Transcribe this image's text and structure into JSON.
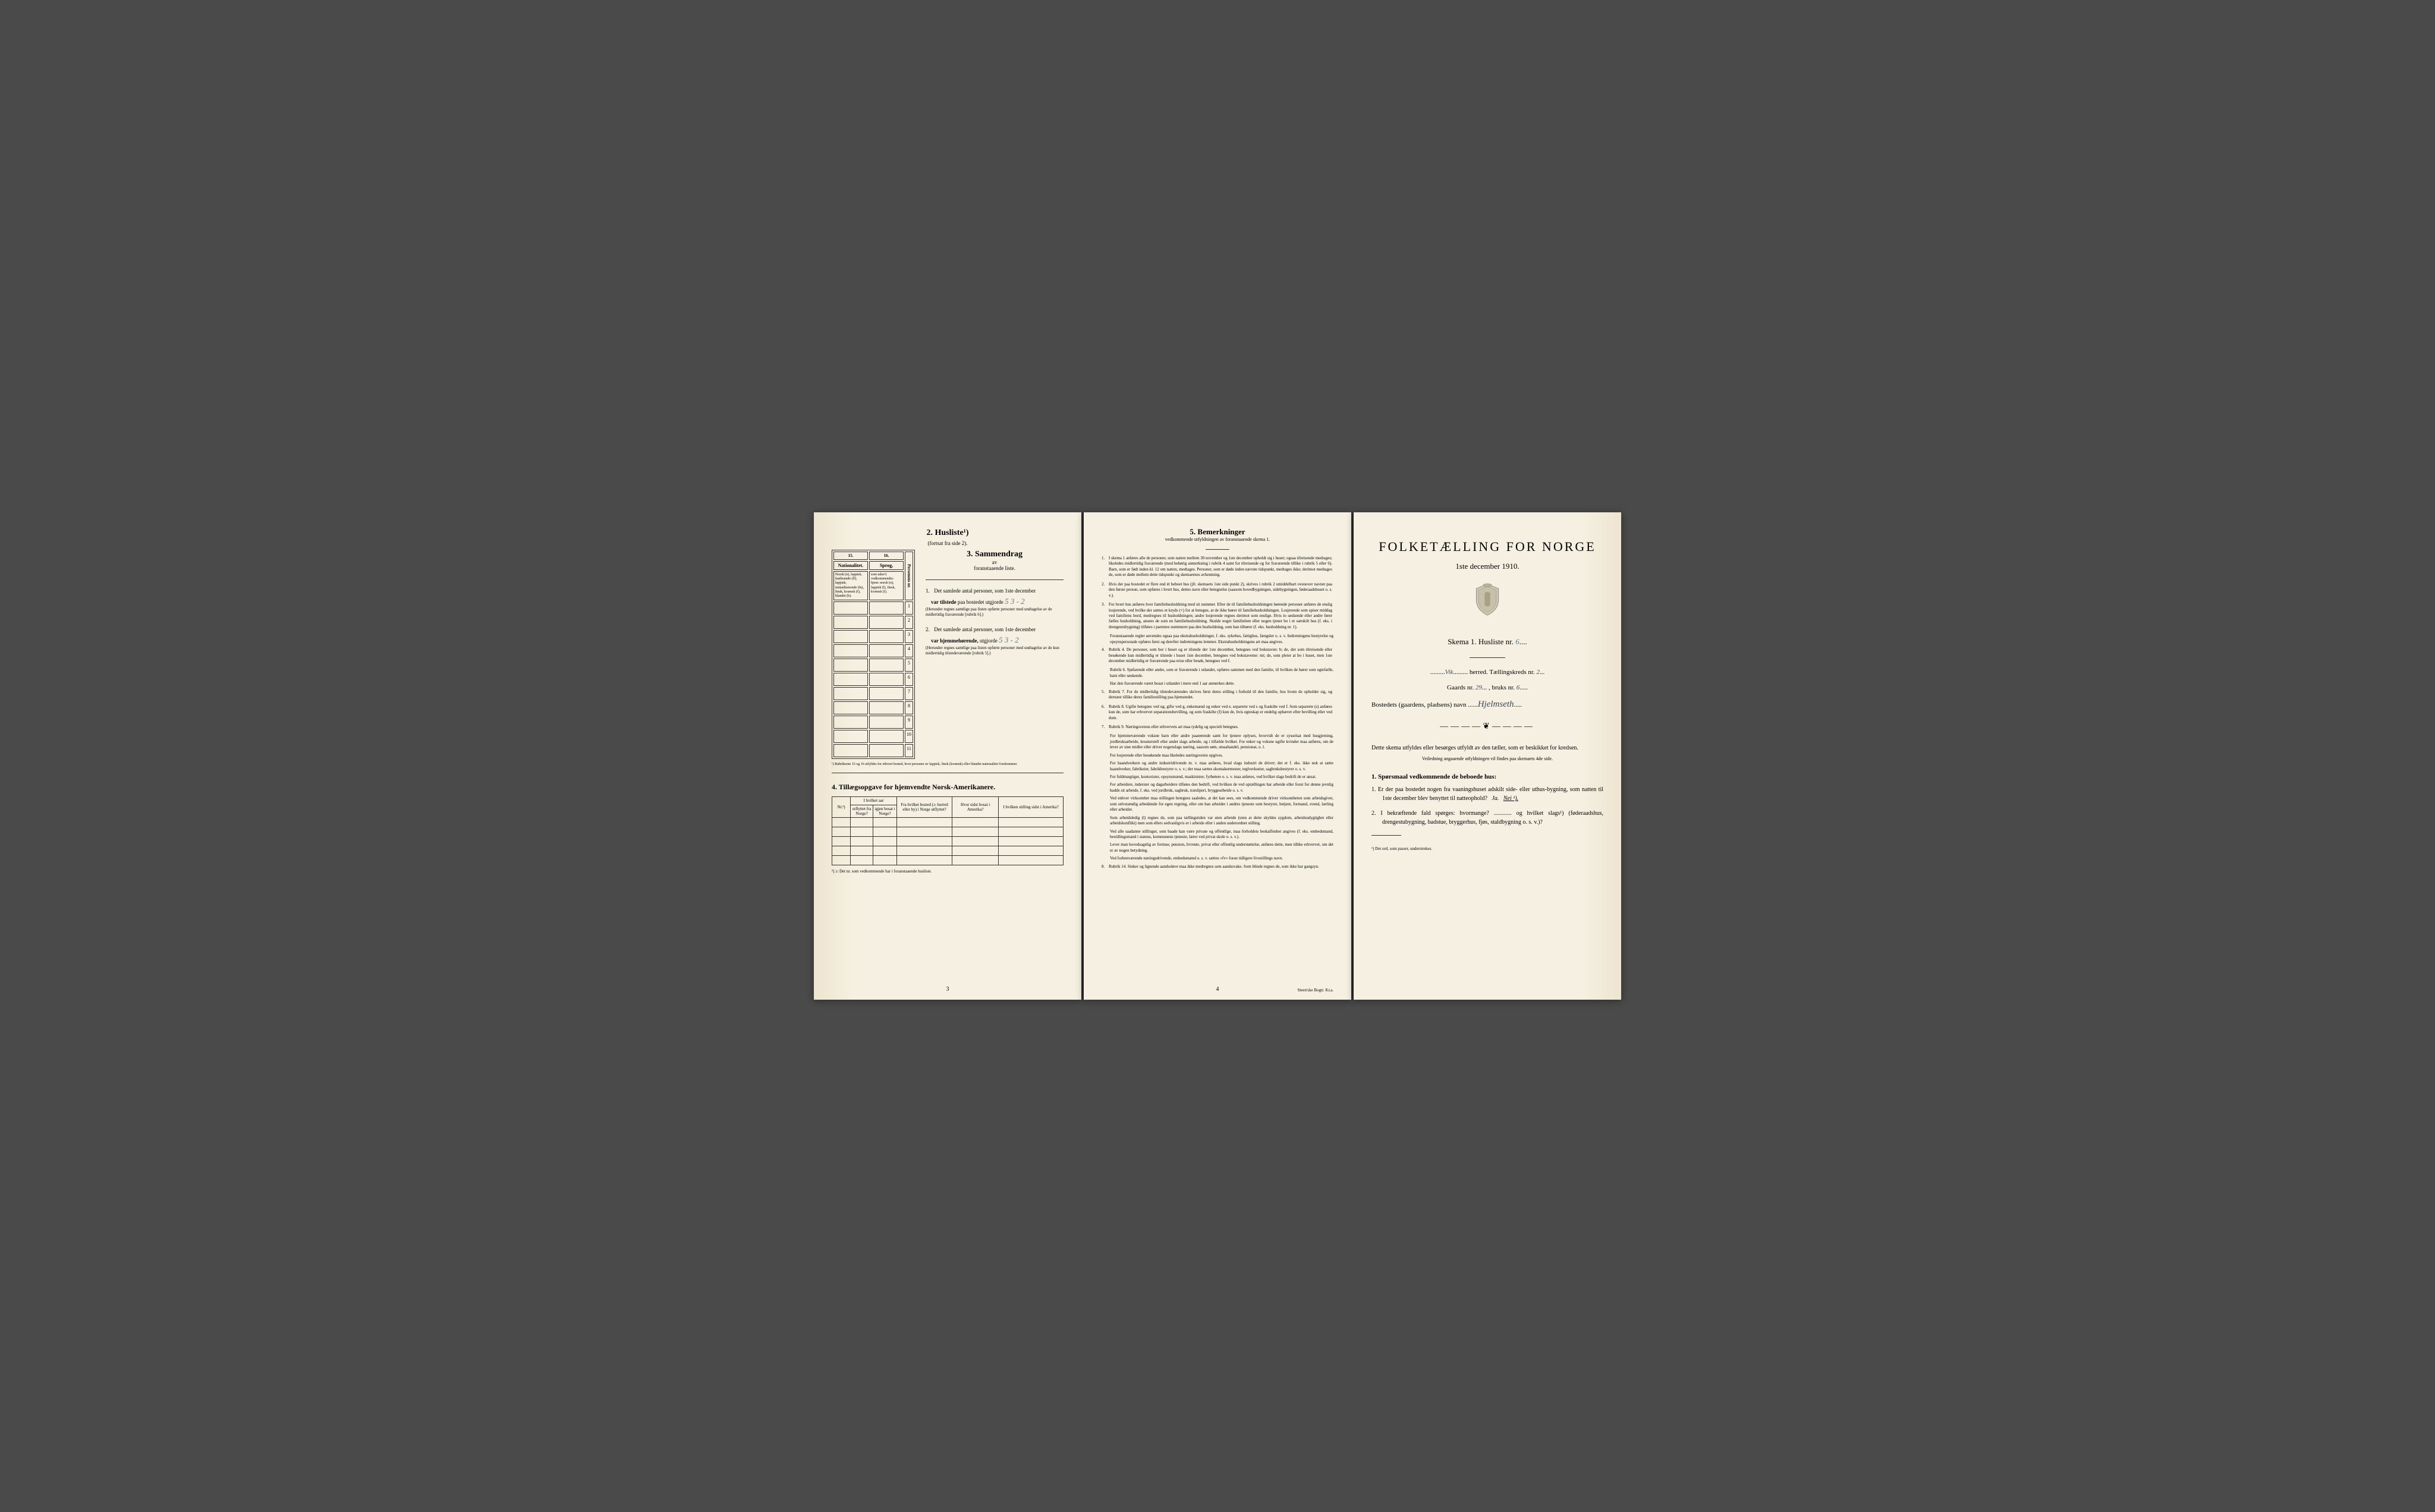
{
  "colors": {
    "paper": "#f5f0e1",
    "paper_edge": "#ede5d0",
    "ink": "#1a1a1a",
    "handwriting": "#5a7a8a",
    "background": "#4a4a4a"
  },
  "typography": {
    "body_family": "Georgia, Times New Roman, serif",
    "title_size_pt": 22,
    "heading_size_pt": 14,
    "body_size_pt": 9,
    "small_size_pt": 7,
    "tiny_size_pt": 6
  },
  "left_page": {
    "husliste": {
      "title": "2.  Husliste¹)",
      "subtitle": "(fortsat fra side 2).",
      "columns": {
        "c15": "15.",
        "c16": "16.",
        "c15_head": "Nationalitet.",
        "c16_head": "Sprog,",
        "c15_sub": "Norsk (n), lappisk, fastboende (lf), lappisk, nomadiserende (ln), finsk, kvænsk (f), blandet (b).",
        "c16_sub": "som tales¹) vedkommendes hjem: norsk (n), lappisk (l), finsk, kvænsk (f).",
        "side": "Personens nr."
      },
      "rows": [
        1,
        2,
        3,
        4,
        5,
        6,
        7,
        8,
        9,
        10,
        11
      ],
      "footnote": "¹) Rubrikerne 15 og 16 utfyldes for ethvert bosted, hvor personer av lappisk, finsk (kvænsk) eller blandet nationalitet forekommer."
    },
    "sammendrag": {
      "title": "3.  Sammendrag",
      "sub": "av",
      "sub2": "foranstaaende liste.",
      "item1_num": "1.",
      "item1_text": "Det samlede antal personer, som 1ste december",
      "item1_bold": "var tilstede",
      "item1_rest": "paa bostedet utgjorde",
      "item1_hand": "5  3 - 2",
      "item1_note": "(Herunder regnes samtlige paa listen opførte personer med undtagelse av de midlertidig fraværende [rubrik 6].)",
      "item2_num": "2.",
      "item2_text": "Det samlede antal personer, som 1ste december",
      "item2_bold": "var hjemmehørende,",
      "item2_rest": "utgjorde",
      "item2_hand": "5   3 - 2",
      "item2_note": "(Herunder regnes samtlige paa listen opførte personer med undtagelse av de kun midlertidig tilstedeværende [rubrik 5].)"
    },
    "section4": {
      "title": "4.  Tillægsopgave for hjemvendte Norsk-Amerikanere.",
      "headers": {
        "nr": "Nr.²)",
        "hvilket_aar": "I hvilket aar",
        "utflyttet": "utflyttet fra Norge?",
        "igjen": "igjen bosat i Norge?",
        "fra_bosted": "Fra hvilket bosted (ɔ: herred eller by) i Norge utflyttet?",
        "hvor_sidst": "Hvor sidst bosat i Amerika?",
        "stilling": "I hvilken stilling sidst i Amerika?"
      },
      "rows": 5,
      "footnote": "²) ɔ: Det nr. som vedkommende har i foranstaaende husliste."
    },
    "page_num": "3"
  },
  "middle_page": {
    "title": "5.  Bemerkninger",
    "subtitle": "vedkommende utfyldningen av foranstaaende skema 1.",
    "items": [
      {
        "n": "1.",
        "t": "I skema 1 anføres alle de personer, som natten mellem 30 november og 1ste december opholdt sig i huset; ogsaa tilreisende medtages; likeledes midlertidig fraværende (med behørig anmerkning i rubrik 4 samt for tilreisende og for fraværende tillike i rubrik 5 eller 6). Barn, som er født inden kl. 12 om natten, medtages. Personer, som er døde inden nævnte tidspunkt, medtages ikke; derimot medtages de, som er døde mellem dette tidspunkt og skemaernes avhentning."
      },
      {
        "n": "2.",
        "t": "Hvis der paa bostedet er flere end ét beboet hus (jfr. skemaets 1ste side punkt 2), skrives i rubrik 2 umiddelbart ovenover navnet paa den første person, som opføres i hvert hus, dettes navn eller betegnelse (saasom hovedbygningen, sidebygningen, føderaadshuset o. s. v.)."
      },
      {
        "n": "3.",
        "t": "For hvert hus anføres hver familiehusholdning med sit nummer. Efter de til familiehusholdningen hørende personer anføres de enslig losjerende, ved hvilke der sættes et kryds (×) for at betegne, at de ikke hører til familiehusholdningen. Losjerende som spiser middag ved familiens bord, medregnes til husholdningen; andre losjerende regnes derimot som enslige. Hvis to søskende eller andre fører fælles husholdning, ansees de som en familiehusholdning. Skulde noget familielem eller nogen tjener bo i et særskilt hus (f. eks. i drengestubygning) tilføies i parentes nummeret paa den husholdning, som han tilhører (f. eks. husholdning nr. 1)."
      },
      {
        "n": "",
        "t": "Foranstaaende regler anvendes ogsaa paa ekstrahusholdninger, f. eks. sykehus, fattighus, fængsler o. s. v. Indretningens bestyrelse og opsynspersonale opføres først og derefter indretningens lemmer. Ekstrahusholdningens art maa angives."
      },
      {
        "n": "4.",
        "t": "Rubrik 4. De personer, som bor i huset og er tilstede der 1ste december, betegnes ved bokstaven: b; de, der som tilreisende eller besøkende kun midlertidig er tilstede i huset 1ste december, betegnes ved bokstaverne: mt; de, som pleier at bo i huset, men 1ste december midlertidig er fraværende paa reise eller besøk, betegnes ved f."
      },
      {
        "n": "",
        "t": "Rubrik 6. Sjøfarende eller andre, som er fraværende i utlandet, opføres sammen med den familie, til hvilken de hører som egtefælle, barn eller søskende."
      },
      {
        "n": "",
        "t": "Har den fraværende været bosat i utlandet i mere end 1 aar anmerkes dette."
      },
      {
        "n": "5.",
        "t": "Rubrik 7. For de midlertidig tilstedeværendes skrives først deres stilling i forhold til den familie, hos hvem de opholder sig, og dernæst tillike deres familiestilling paa hjemstedet."
      },
      {
        "n": "6.",
        "t": "Rubrik 8. Ugifte betegnes ved ug, gifte ved g, enkemænd og enker ved e, separerte ved s og fraskilte ved f. Som separerte (s) anføres kun de, som har erhvervet separationsbevilling, og som fraskilte (f) kun de, hvis egteskap er endelig ophævet efter bevilling eller ved dom."
      },
      {
        "n": "7.",
        "t": "Rubrik 9. Næringsveiens eller erhvervets art maa tydelig og specielt betegnes."
      },
      {
        "n": "",
        "t": "For hjemmeværende voksne barn eller andre paarørende samt for tjenere oplyses, hvorvidt de er sysselsat med husgjerning, jordbruksarbeide, kreaturstell eller andet slags arbeide, og i tilfælde hvilket. For enker og voksne ugifte kvinder maa anføres, om de lever av sine midler eller driver nogenslags næring, saasom søm, smaahandel, pensionat, o. l."
      },
      {
        "n": "",
        "t": "For losjerende eller besøkende maa likeledes næringsveien opgives."
      },
      {
        "n": "",
        "t": "For haandverkere og andre industridrivende m. v. maa anføres, hvad slags industri de driver; det er f. eks. ikke nok at sætte haandverker, fabrikeier, fabrikbestyrer o. s. v.; der maa sættes skomakermester, teglverkseier, sagbruksbestyrer o. s. v."
      },
      {
        "n": "",
        "t": "For fuldmægtiger, kontorister, opsynsmænd, maskinister, fyrbøtere o. s. v. maa anføres, ved hvilket slags bedrift de er ansat."
      },
      {
        "n": "",
        "t": "For arbeidere, inderster og dagarbeidere tilføies den bedrift, ved hvilken de ved optællingen har arbeide eller forut for denne jevnlig hadde sit arbeide, f. eks. ved jordbruk, sagbruk, træsliperi, bryggearbeide o. s. v."
      },
      {
        "n": "",
        "t": "Ved enhver virksomhet maa stillingen betegnes saaledes, at det kan sees, om vedkommende driver virksomheten som arbeidsgiver, som selvstændig arbeidende for egen regning, eller om han arbeider i andres tjeneste som bestyrer, betjent, formand, svend, lærling eller arbeider."
      },
      {
        "n": "",
        "t": "Som arbeidsledig (l) regnes de, som paa tællingstiden var uten arbeide (uten at dette skyldes sygdom, arbeidsudygtighet eller arbeidskonflikt) men som ellers sedvanligvis er i arbeide eller i anden underordnet stilling."
      },
      {
        "n": "",
        "t": "Ved alle saadanne stillinger, som baade kan være private og offentlige, maa forholdets beskaffenhet angives (f. eks. embedsmand, bestillingsmand i statens, kommunens tjeneste, lærer ved privat skole o. s. v.)."
      },
      {
        "n": "",
        "t": "Lever man hovedsagelig av formue, pension, livrente, privat eller offentlig understøttelse, anføres dette, men tillike erhvervet, om det er av nogen betydning."
      },
      {
        "n": "",
        "t": "Ved forhenværende næringsdrivende, embedsmænd o. s. v. sættes «fv» foran tidligere livsstillings navn."
      },
      {
        "n": "8.",
        "t": "Rubrik 14. Sinker og lignende aandssløve maa ikke medregnes som aandssvake. Som blinde regnes de, som ikke har gangsyn."
      }
    ],
    "page_num": "4",
    "printer": "Steen'ske Bogtr.  Kr.a."
  },
  "right_page": {
    "title": "FOLKETÆLLING FOR NORGE",
    "date": "1ste december 1910.",
    "skema": "Skema 1.  Husliste nr.",
    "skema_hand": "6",
    "herred_hand": "Vik",
    "herred_label": "herred.   Tællingskreds nr.",
    "kreds_hand": "2",
    "gaards_label": "Gaards nr.",
    "gaards_hand": "29",
    "bruks_label": ", bruks nr.",
    "bruks_hand": "6",
    "bosted_label": "Bostedets (gaardens, pladsens) navn",
    "bosted_hand": "Hjelmseth",
    "ornament": "————❦————",
    "instr1": "Dette skema utfyldes eller besørges utfyldt av den tæller, som er beskikket for kredsen.",
    "instr_sub": "Veiledning angaaende utfyldningen vil findes paa skemaets 4de side.",
    "sporsmaal_head": "1. Spørsmaal vedkommende de beboede hus:",
    "q1": "1.  Er der paa bostedet nogen fra vaaningshuset adskilt side- eller uthus-bygning, som natten til 1ste december blev benyttet til natteophold?",
    "q1_ja": "Ja.",
    "q1_nei": "Nei ¹).",
    "q2": "2.  I bekræftende fald spørges: hvormange? ............ og hvilket slags¹) (føderaadshus, drengestubygning, badstue, bryggerhus, fjøs, staldbygning o. s. v.)?",
    "footnote": "¹) Det ord, som passer, understrekes."
  }
}
